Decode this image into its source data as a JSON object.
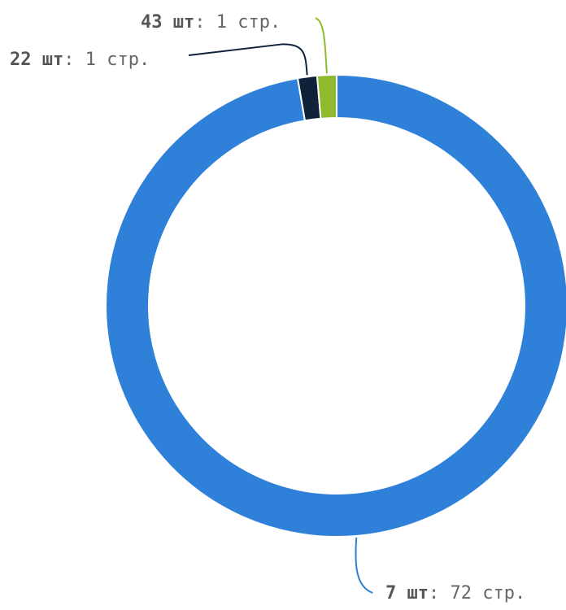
{
  "chart_data": {
    "type": "pie",
    "variant": "donut",
    "title": "",
    "legend": "none",
    "slices": [
      {
        "label": "7 шт",
        "value": 72,
        "value_text": "72 стр.",
        "color": "#2f80d9"
      },
      {
        "label": "22 шт",
        "value": 1,
        "value_text": "1 стр.",
        "color": "#10213a"
      },
      {
        "label": "43 шт",
        "value": 1,
        "value_text": "1 стр.",
        "color": "#8dbb2d"
      }
    ]
  }
}
